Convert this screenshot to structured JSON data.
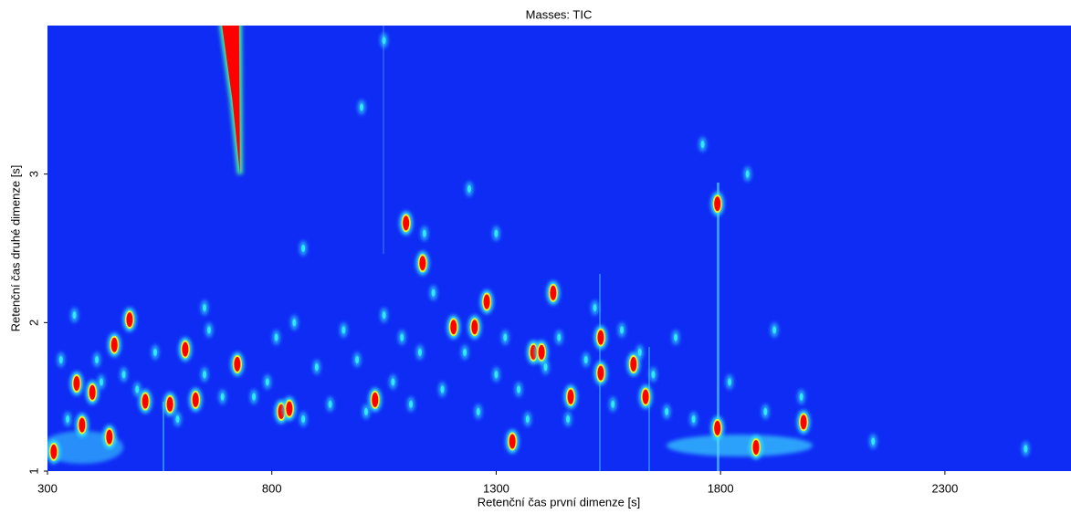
{
  "chart_data": {
    "type": "contour",
    "title": "Masses: TIC",
    "x_label": "Retenční čas první dimenze [s]",
    "y_label": "Retenční čas druhé dimenze [s]",
    "xlim": [
      300,
      2581
    ],
    "ylim": [
      1,
      4
    ],
    "xticks": [
      300,
      800,
      1300,
      1800,
      2300
    ],
    "yticks": [
      1,
      2,
      3
    ],
    "background": "#0f2cf5",
    "ridge": {
      "color": "#ff0000",
      "x": [
        689,
        727,
        729,
        712
      ],
      "y": [
        4,
        4,
        3.0,
        3.5
      ]
    },
    "series": [
      {
        "color": "#ff0000",
        "x": [
          314,
          365,
          377,
          400,
          438,
          449,
          483,
          518,
          573,
          607,
          630,
          723,
          821,
          839,
          1030,
          1099,
          1136,
          1205,
          1252,
          1279,
          1336,
          1383,
          1401,
          1427,
          1466,
          1533,
          1533,
          1606,
          1633,
          1793,
          1793,
          1879,
          1985
        ],
        "y": [
          1.13,
          1.59,
          1.31,
          1.53,
          1.23,
          1.85,
          2.02,
          1.47,
          1.45,
          1.82,
          1.48,
          1.72,
          1.4,
          1.42,
          1.48,
          2.67,
          2.4,
          1.97,
          1.97,
          2.14,
          1.2,
          1.8,
          1.8,
          2.2,
          1.5,
          1.9,
          1.66,
          1.72,
          1.5,
          2.8,
          1.29,
          1.16,
          1.33
        ]
      },
      {
        "color": "#30e8ff",
        "x": [
          330,
          345,
          360,
          420,
          470,
          500,
          540,
          590,
          650,
          660,
          690,
          760,
          790,
          810,
          850,
          870,
          900,
          930,
          960,
          990,
          1010,
          1050,
          1070,
          1090,
          1110,
          1130,
          1160,
          1180,
          1230,
          1260,
          1300,
          1320,
          1350,
          1370,
          1410,
          1440,
          1460,
          1500,
          1520,
          1560,
          1580,
          1620,
          1650,
          1680,
          1700,
          1740,
          1760,
          1820,
          1860,
          1900,
          1920,
          1980,
          1000,
          1050,
          1140,
          1240,
          1300,
          870,
          650,
          410,
          2480,
          2140
        ],
        "y": [
          1.75,
          1.35,
          2.05,
          1.6,
          1.65,
          1.55,
          1.8,
          1.35,
          1.65,
          1.95,
          1.5,
          1.5,
          1.6,
          1.9,
          2.0,
          1.35,
          1.7,
          1.45,
          1.95,
          1.75,
          1.4,
          2.05,
          1.6,
          1.9,
          1.45,
          1.8,
          2.2,
          1.55,
          1.8,
          1.4,
          1.65,
          1.9,
          1.55,
          1.35,
          1.7,
          1.9,
          1.35,
          1.75,
          2.1,
          1.45,
          1.95,
          1.8,
          1.65,
          1.4,
          1.9,
          1.35,
          3.2,
          1.6,
          3.0,
          1.4,
          1.95,
          1.5,
          3.45,
          3.9,
          2.6,
          2.9,
          2.6,
          2.5,
          2.1,
          1.75,
          1.15,
          1.2
        ]
      }
    ]
  }
}
